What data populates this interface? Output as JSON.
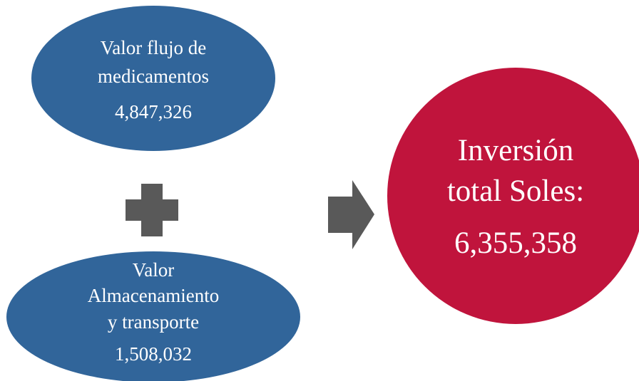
{
  "nodes": [
    {
      "lines": [
        "Valor flujo de",
        "medicamentos"
      ],
      "value": "4,847,326"
    },
    {
      "lines": [
        "Valor",
        "Almacenamiento",
        "y transporte"
      ],
      "value": "1,508,032"
    },
    {
      "lines": [
        "Inversión",
        "total Soles:"
      ],
      "value": "6,355,358"
    }
  ]
}
